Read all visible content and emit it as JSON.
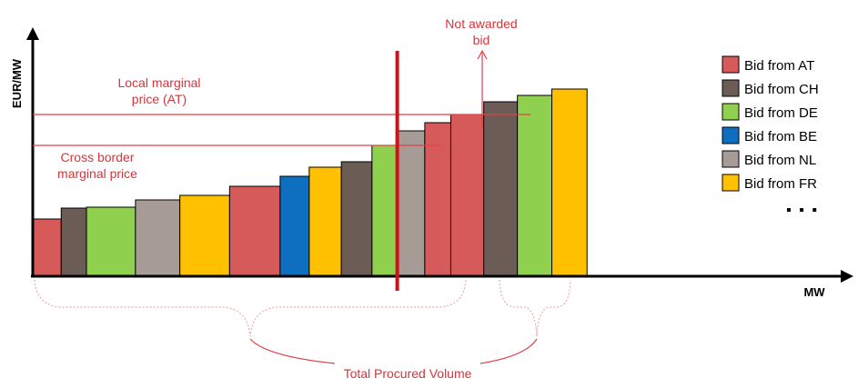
{
  "chart_data": {
    "type": "bar",
    "xlabel": "MW",
    "ylabel": "EUR/MW",
    "palette": {
      "AT": "#d75a5a",
      "CH": "#6b5c55",
      "DE": "#8fd14f",
      "BE": "#0e6fc1",
      "NL": "#a79b95",
      "FR": "#ffc000"
    },
    "bars": [
      {
        "origin": "AT",
        "volume": 36,
        "price": 63
      },
      {
        "origin": "CH",
        "volume": 33,
        "price": 75
      },
      {
        "origin": "DE",
        "volume": 64,
        "price": 76
      },
      {
        "origin": "NL",
        "volume": 58,
        "price": 84
      },
      {
        "origin": "FR",
        "volume": 65,
        "price": 89
      },
      {
        "origin": "AT",
        "volume": 66,
        "price": 99
      },
      {
        "origin": "BE",
        "volume": 38,
        "price": 110
      },
      {
        "origin": "FR",
        "volume": 42,
        "price": 120
      },
      {
        "origin": "CH",
        "volume": 40,
        "price": 126
      },
      {
        "origin": "DE",
        "volume": 34,
        "price": 144
      },
      {
        "origin": "NL",
        "volume": 35,
        "price": 160
      },
      {
        "origin": "AT",
        "volume": 34,
        "price": 169
      },
      {
        "origin": "AT",
        "volume": 43,
        "price": 178
      },
      {
        "origin": "CH",
        "volume": 44,
        "price": 192
      },
      {
        "origin": "DE",
        "volume": 45,
        "price": 199
      },
      {
        "origin": "FR",
        "volume": 46,
        "price": 206
      }
    ],
    "xlim": [
      0,
      863
    ],
    "ylim": [
      0,
      268
    ],
    "legend": {
      "position": "right",
      "entries": [
        {
          "label": "Bid from AT",
          "origin": "AT"
        },
        {
          "label": "Bid from CH",
          "origin": "CH"
        },
        {
          "label": "Bid from DE",
          "origin": "DE"
        },
        {
          "label": "Bid from BE",
          "origin": "BE"
        },
        {
          "label": "Bid from NL",
          "origin": "NL"
        },
        {
          "label": "Bid from FR",
          "origin": "FR"
        }
      ],
      "more": "▪ ▪ ▪"
    },
    "annotations": {
      "local_price": {
        "label_line1": "Local marginal",
        "label_line2": "price (AT)",
        "value": 178
      },
      "cross_border_price": {
        "label_line1": "Cross border",
        "label_line2": "marginal price",
        "value": 144
      },
      "not_awarded": {
        "label_line1": "Not awarded",
        "label_line2": "bid",
        "cut_x": 475
      },
      "total_volume": {
        "label": "Total Procured Volume",
        "brace1": [
          0,
          475
        ],
        "brace2": [
          512,
          589
        ]
      }
    }
  }
}
